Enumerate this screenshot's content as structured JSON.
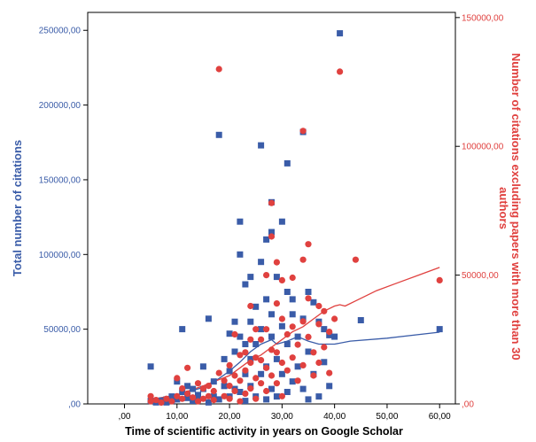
{
  "chart_data": {
    "type": "scatter",
    "xlabel": "Time of scientific activity in years on Google Scholar",
    "ylabel_left": "Total number of citations",
    "ylabel_right": "Number of citations excluding papers with more than 30 authors",
    "ylabel_right_lines": [
      "Number of citations excluding papers with more than 30",
      "authors"
    ],
    "xlim": [
      -7,
      63
    ],
    "ylim_left": [
      0,
      262000
    ],
    "ylim_right": [
      0,
      152000
    ],
    "x_ticks": [
      ",00",
      "10,00",
      "20,00",
      "30,00",
      "40,00",
      "50,00",
      "60,00"
    ],
    "x_tick_values": [
      0,
      10,
      20,
      30,
      40,
      50,
      60
    ],
    "y_left_ticks": [
      ",00",
      "50000,00",
      "100000,00",
      "150000,00",
      "200000,00",
      "250000,00"
    ],
    "y_left_tick_values": [
      0,
      50000,
      100000,
      150000,
      200000,
      250000
    ],
    "y_right_ticks": [
      ",00",
      "50000,00",
      "100000,00",
      "150000,00"
    ],
    "y_right_tick_values": [
      0,
      50000,
      100000,
      150000
    ],
    "grid": false,
    "colors": {
      "total": "#3a5ca8",
      "excluding": "#e0413f"
    },
    "series": [
      {
        "name": "Total number of citations",
        "axis": "left",
        "marker": "square",
        "color": "#3a5ca8",
        "points": [
          [
            5,
            25000
          ],
          [
            5,
            2000
          ],
          [
            6,
            1000
          ],
          [
            7,
            2000
          ],
          [
            8,
            3000
          ],
          [
            8,
            1000
          ],
          [
            9,
            2000
          ],
          [
            9,
            5000
          ],
          [
            10,
            3000
          ],
          [
            10,
            15000
          ],
          [
            11,
            50000
          ],
          [
            11,
            8000
          ],
          [
            12,
            12000
          ],
          [
            12,
            4000
          ],
          [
            13,
            10000
          ],
          [
            13,
            2000
          ],
          [
            14,
            6000
          ],
          [
            14,
            3000
          ],
          [
            15,
            10000
          ],
          [
            15,
            25000
          ],
          [
            16,
            57000
          ],
          [
            16,
            1000
          ],
          [
            17,
            5000
          ],
          [
            17,
            15000
          ],
          [
            18,
            180000
          ],
          [
            18,
            3000
          ],
          [
            19,
            12000
          ],
          [
            19,
            30000
          ],
          [
            20,
            47000
          ],
          [
            20,
            22000
          ],
          [
            20,
            5000
          ],
          [
            21,
            55000
          ],
          [
            21,
            35000
          ],
          [
            21,
            10000
          ],
          [
            22,
            122000
          ],
          [
            22,
            100000
          ],
          [
            22,
            45000
          ],
          [
            22,
            8000
          ],
          [
            23,
            80000
          ],
          [
            23,
            40000
          ],
          [
            23,
            20000
          ],
          [
            23,
            2000
          ],
          [
            24,
            85000
          ],
          [
            24,
            55000
          ],
          [
            24,
            30000
          ],
          [
            24,
            12000
          ],
          [
            25,
            65000
          ],
          [
            25,
            40000
          ],
          [
            25,
            5000
          ],
          [
            26,
            173000
          ],
          [
            26,
            95000
          ],
          [
            26,
            50000
          ],
          [
            26,
            20000
          ],
          [
            27,
            110000
          ],
          [
            27,
            70000
          ],
          [
            27,
            25000
          ],
          [
            27,
            3000
          ],
          [
            28,
            135000
          ],
          [
            28,
            115000
          ],
          [
            28,
            60000
          ],
          [
            28,
            45000
          ],
          [
            28,
            10000
          ],
          [
            29,
            85000
          ],
          [
            29,
            30000
          ],
          [
            29,
            5000
          ],
          [
            30,
            122000
          ],
          [
            30,
            52000
          ],
          [
            30,
            20000
          ],
          [
            31,
            161000
          ],
          [
            31,
            75000
          ],
          [
            31,
            40000
          ],
          [
            31,
            8000
          ],
          [
            32,
            70000
          ],
          [
            32,
            60000
          ],
          [
            32,
            15000
          ],
          [
            33,
            45000
          ],
          [
            33,
            25000
          ],
          [
            34,
            182000
          ],
          [
            34,
            57000
          ],
          [
            34,
            10000
          ],
          [
            35,
            75000
          ],
          [
            35,
            35000
          ],
          [
            35,
            3000
          ],
          [
            36,
            68000
          ],
          [
            36,
            20000
          ],
          [
            37,
            55000
          ],
          [
            37,
            5000
          ],
          [
            38,
            50000
          ],
          [
            38,
            28000
          ],
          [
            39,
            46000
          ],
          [
            39,
            12000
          ],
          [
            40,
            45000
          ],
          [
            41,
            248000
          ],
          [
            45,
            56000
          ],
          [
            60,
            50000
          ]
        ],
        "fit_line": [
          [
            5,
            3000
          ],
          [
            10,
            6000
          ],
          [
            15,
            11000
          ],
          [
            18,
            17000
          ],
          [
            20,
            22000
          ],
          [
            22,
            28000
          ],
          [
            24,
            35000
          ],
          [
            26,
            40000
          ],
          [
            28,
            43000
          ],
          [
            29,
            40000
          ],
          [
            31,
            42000
          ],
          [
            33,
            45000
          ],
          [
            35,
            42000
          ],
          [
            37,
            40000
          ],
          [
            40,
            40000
          ],
          [
            43,
            42000
          ],
          [
            50,
            44000
          ],
          [
            60,
            48000
          ]
        ]
      },
      {
        "name": "Number of citations excluding papers with more than 30 authors",
        "axis": "right",
        "marker": "circle",
        "color": "#e0413f",
        "points": [
          [
            5,
            3000
          ],
          [
            5,
            1000
          ],
          [
            6,
            1500
          ],
          [
            7,
            500
          ],
          [
            8,
            2000
          ],
          [
            9,
            1000
          ],
          [
            10,
            3000
          ],
          [
            10,
            10000
          ],
          [
            11,
            6000
          ],
          [
            11,
            2000
          ],
          [
            12,
            14000
          ],
          [
            12,
            4000
          ],
          [
            13,
            2500
          ],
          [
            14,
            8000
          ],
          [
            14,
            1000
          ],
          [
            15,
            6000
          ],
          [
            15,
            2000
          ],
          [
            16,
            7000
          ],
          [
            16,
            3000
          ],
          [
            17,
            1500
          ],
          [
            17,
            5000
          ],
          [
            18,
            130000
          ],
          [
            18,
            12000
          ],
          [
            19,
            9000
          ],
          [
            19,
            3000
          ],
          [
            20,
            15000
          ],
          [
            20,
            7000
          ],
          [
            20,
            2000
          ],
          [
            21,
            27000
          ],
          [
            21,
            11000
          ],
          [
            21,
            5000
          ],
          [
            22,
            19000
          ],
          [
            22,
            9000
          ],
          [
            22,
            1000
          ],
          [
            23,
            20000
          ],
          [
            23,
            13000
          ],
          [
            23,
            4000
          ],
          [
            24,
            38000
          ],
          [
            24,
            25000
          ],
          [
            24,
            16000
          ],
          [
            24,
            6000
          ],
          [
            25,
            29000
          ],
          [
            25,
            18000
          ],
          [
            25,
            10000
          ],
          [
            25,
            2000
          ],
          [
            26,
            25000
          ],
          [
            26,
            17000
          ],
          [
            26,
            8000
          ],
          [
            27,
            50000
          ],
          [
            27,
            29000
          ],
          [
            27,
            14000
          ],
          [
            27,
            5000
          ],
          [
            28,
            78000
          ],
          [
            28,
            65000
          ],
          [
            28,
            21000
          ],
          [
            28,
            11000
          ],
          [
            29,
            55000
          ],
          [
            29,
            39000
          ],
          [
            29,
            20000
          ],
          [
            29,
            8000
          ],
          [
            30,
            48000
          ],
          [
            30,
            33000
          ],
          [
            30,
            16000
          ],
          [
            30,
            3000
          ],
          [
            31,
            27000
          ],
          [
            31,
            13000
          ],
          [
            32,
            49000
          ],
          [
            32,
            30000
          ],
          [
            32,
            18000
          ],
          [
            33,
            23000
          ],
          [
            33,
            9000
          ],
          [
            34,
            106000
          ],
          [
            34,
            56000
          ],
          [
            34,
            32000
          ],
          [
            34,
            15000
          ],
          [
            35,
            62000
          ],
          [
            35,
            41000
          ],
          [
            35,
            26000
          ],
          [
            36,
            20000
          ],
          [
            36,
            11000
          ],
          [
            37,
            38000
          ],
          [
            37,
            31000
          ],
          [
            37,
            16000
          ],
          [
            38,
            36000
          ],
          [
            38,
            22000
          ],
          [
            39,
            28000
          ],
          [
            39,
            12000
          ],
          [
            40,
            33000
          ],
          [
            41,
            129000
          ],
          [
            44,
            56000
          ],
          [
            60,
            48000
          ]
        ],
        "fit_line": [
          [
            5,
            1500
          ],
          [
            10,
            3500
          ],
          [
            15,
            7000
          ],
          [
            20,
            11000
          ],
          [
            22,
            14000
          ],
          [
            24,
            17000
          ],
          [
            26,
            19000
          ],
          [
            28,
            22000
          ],
          [
            30,
            25000
          ],
          [
            32,
            28000
          ],
          [
            34,
            30000
          ],
          [
            36,
            33000
          ],
          [
            38,
            36000
          ],
          [
            40,
            38000
          ],
          [
            41,
            38500
          ],
          [
            42,
            38000
          ],
          [
            44,
            40000
          ],
          [
            48,
            44000
          ],
          [
            52,
            47000
          ],
          [
            56,
            50000
          ],
          [
            60,
            53000
          ]
        ]
      }
    ]
  }
}
